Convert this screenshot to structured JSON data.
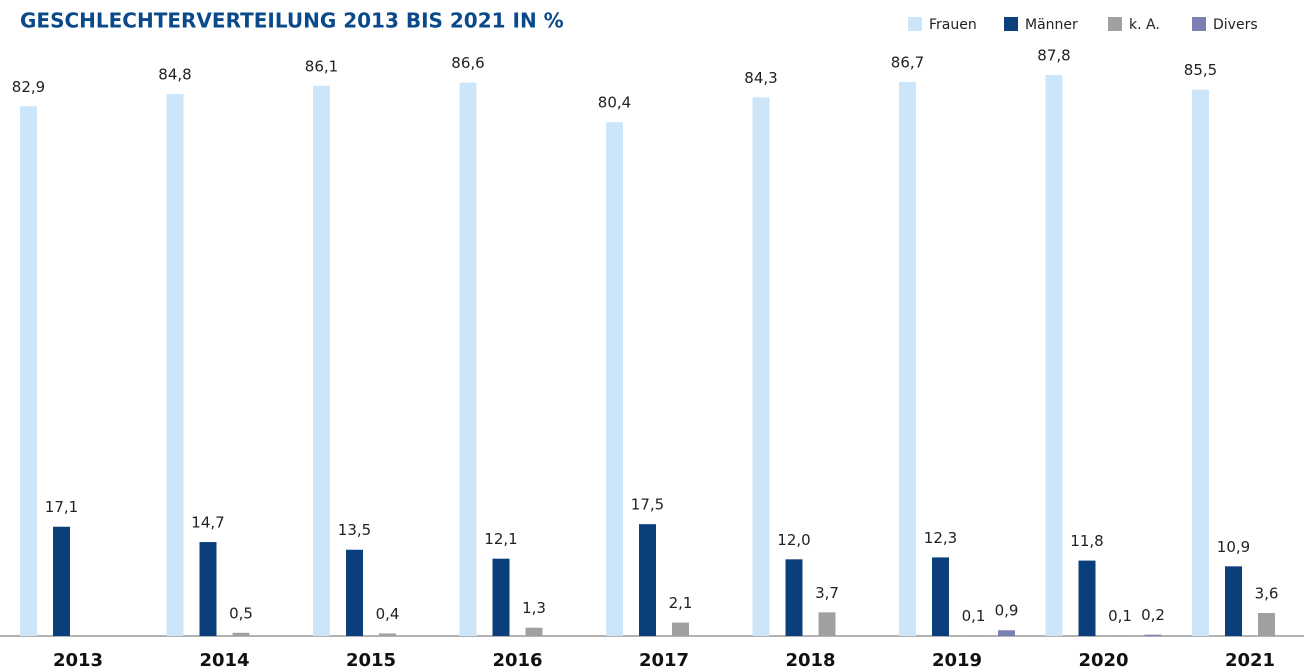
{
  "chart_data": {
    "type": "bar",
    "title": "GESCHLECHTERVERTEILUNG 2013 BIS 2021 IN %",
    "categories": [
      "2013",
      "2014",
      "2015",
      "2016",
      "2017",
      "2018",
      "2019",
      "2020",
      "2021"
    ],
    "series": [
      {
        "name": "Frauen",
        "color": "#cde5f8",
        "values": [
          82.9,
          84.8,
          86.1,
          86.6,
          80.4,
          84.3,
          86.7,
          87.8,
          85.5
        ],
        "value_labels": [
          "82,9",
          "84,8",
          "86,1",
          "86,6",
          "80,4",
          "84,3",
          "86,7",
          "87,8",
          "85,5"
        ]
      },
      {
        "name": "Männer",
        "color": "#0b3f7c",
        "values": [
          17.1,
          14.7,
          13.5,
          12.1,
          17.5,
          12.0,
          12.3,
          11.8,
          10.9
        ],
        "value_labels": [
          "17,1",
          "14,7",
          "13,5",
          "12,1",
          "17,5",
          "12,0",
          "12,3",
          "11,8",
          "10,9"
        ]
      },
      {
        "name": "k. A.",
        "color": "#a0a0a0",
        "values": [
          null,
          0.5,
          0.4,
          1.3,
          2.1,
          3.7,
          0.1,
          0.1,
          3.6
        ],
        "value_labels": [
          null,
          "0,5",
          "0,4",
          "1,3",
          "2,1",
          "3,7",
          "0,1",
          "0,1",
          "3,6"
        ]
      },
      {
        "name": "Divers",
        "color": "#7b80b3",
        "values": [
          null,
          null,
          null,
          null,
          null,
          null,
          0.9,
          0.2,
          null
        ],
        "value_labels": [
          null,
          null,
          null,
          null,
          null,
          null,
          "0,9",
          "0,2",
          null
        ]
      }
    ],
    "legend": "top-right"
  }
}
